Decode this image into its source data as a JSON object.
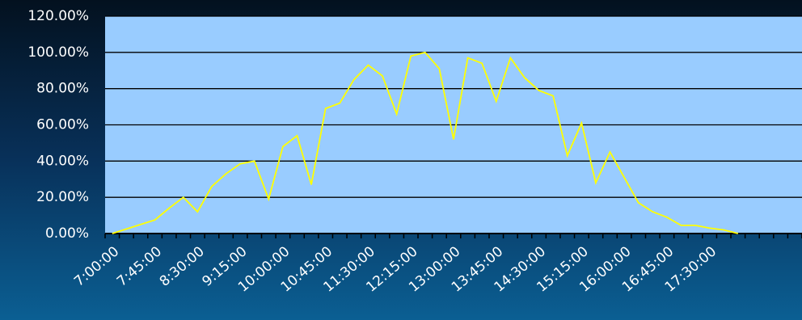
{
  "chart_data": {
    "type": "line",
    "categories": [
      "7:00:00",
      null,
      null,
      "7:45:00",
      null,
      null,
      "8:30:00",
      null,
      null,
      "9:15:00",
      null,
      null,
      "10:00:00",
      null,
      null,
      "10:45:00",
      null,
      null,
      "11:30:00",
      null,
      null,
      "12:15:00",
      null,
      null,
      "13:00:00",
      null,
      null,
      "13:45:00",
      null,
      null,
      "14:30:00",
      null,
      null,
      "15:15:00",
      null,
      null,
      "16:00:00",
      null,
      null,
      "16:45:00",
      null,
      null,
      "17:30:00",
      null,
      null,
      null,
      null,
      null,
      null
    ],
    "values": [
      0,
      2.5,
      5,
      7.5,
      14,
      20,
      12,
      26,
      33,
      38.5,
      40,
      19,
      48,
      54,
      27,
      69,
      72,
      85,
      93,
      87,
      66,
      98,
      100,
      91,
      52,
      97,
      94,
      73,
      97,
      86,
      79,
      76,
      43,
      61,
      28,
      45,
      31,
      17,
      12,
      9,
      4.5,
      4.5,
      3,
      2,
      0,
      null,
      null,
      null,
      null
    ],
    "color": "#ffff00",
    "ylim": [
      0,
      120
    ],
    "yticks": [
      {
        "value": 0,
        "label": "0.00%"
      },
      {
        "value": 20,
        "label": "20.00%"
      },
      {
        "value": 40,
        "label": "40.00%"
      },
      {
        "value": 60,
        "label": "60.00%"
      },
      {
        "value": 80,
        "label": "80.00%"
      },
      {
        "value": 100,
        "label": "100.00%"
      },
      {
        "value": 120,
        "label": "120.00%"
      }
    ],
    "grid": true
  }
}
